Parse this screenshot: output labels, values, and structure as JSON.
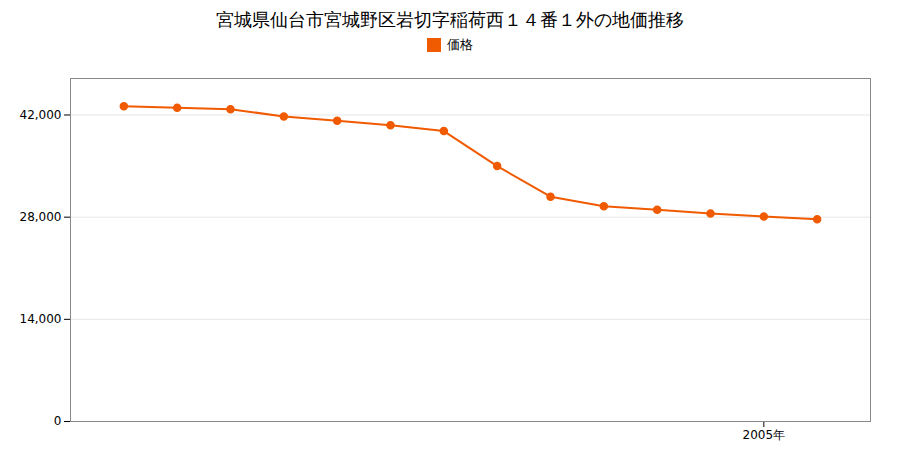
{
  "chart_data": {
    "type": "line",
    "title": "宮城県仙台市宮城野区岩切字稲荷西１４番１外の地価推移",
    "x": [
      1993,
      1994,
      1995,
      1996,
      1997,
      1998,
      1999,
      2000,
      2001,
      2002,
      2003,
      2004,
      2005,
      2006
    ],
    "series": [
      {
        "name": "価格",
        "color": "#f05a00",
        "marker": "circle",
        "line_style": "solid",
        "values": [
          43200,
          43000,
          42800,
          41800,
          41200,
          40600,
          39800,
          35000,
          30800,
          29500,
          29000,
          28500,
          28100,
          27700
        ]
      }
    ],
    "xlim": [
      1992,
      2007
    ],
    "xticks": [
      {
        "value": 2005,
        "label": "2005年"
      }
    ],
    "ylim": [
      0,
      47000
    ],
    "yticks": [
      0,
      {
        "value": 14000,
        "label": "14,000"
      },
      {
        "value": 28000,
        "label": "28,000"
      },
      {
        "value": 42000,
        "label": "42,000"
      }
    ],
    "grid": "y",
    "legend": "top"
  }
}
